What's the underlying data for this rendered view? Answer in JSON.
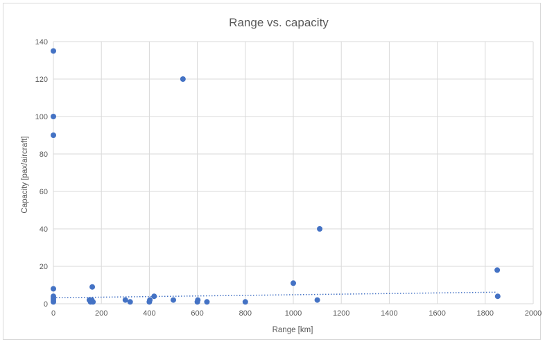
{
  "chart_data": {
    "type": "scatter",
    "title": "Range vs. capacity",
    "xlabel": "Range [km]",
    "ylabel": "Capacity [pax/aircraft]",
    "xlim": [
      0,
      2000
    ],
    "ylim": [
      0,
      140
    ],
    "xticks": [
      0,
      200,
      400,
      600,
      800,
      1000,
      1200,
      1400,
      1600,
      1800,
      2000
    ],
    "yticks": [
      0,
      20,
      40,
      60,
      80,
      100,
      120,
      140
    ],
    "grid": true,
    "series": [
      {
        "color": "#4472c4",
        "points": [
          [
            0,
            135
          ],
          [
            0,
            100
          ],
          [
            0,
            90
          ],
          [
            0,
            8
          ],
          [
            0,
            4
          ],
          [
            0,
            3
          ],
          [
            0,
            2
          ],
          [
            0,
            1
          ],
          [
            150,
            2
          ],
          [
            155,
            1
          ],
          [
            160,
            2
          ],
          [
            162,
            9
          ],
          [
            165,
            1
          ],
          [
            300,
            2
          ],
          [
            320,
            1
          ],
          [
            400,
            1
          ],
          [
            402,
            2
          ],
          [
            420,
            4
          ],
          [
            500,
            2
          ],
          [
            540,
            120
          ],
          [
            600,
            1
          ],
          [
            602,
            2
          ],
          [
            640,
            1
          ],
          [
            800,
            1
          ],
          [
            1000,
            11
          ],
          [
            1100,
            2
          ],
          [
            1110,
            40
          ],
          [
            1850,
            18
          ],
          [
            1852,
            4
          ]
        ]
      }
    ],
    "trendline": {
      "style": "dotted",
      "color": "#4472c4",
      "x": [
        0,
        1850
      ],
      "y": [
        3.2,
        6.2
      ]
    }
  }
}
